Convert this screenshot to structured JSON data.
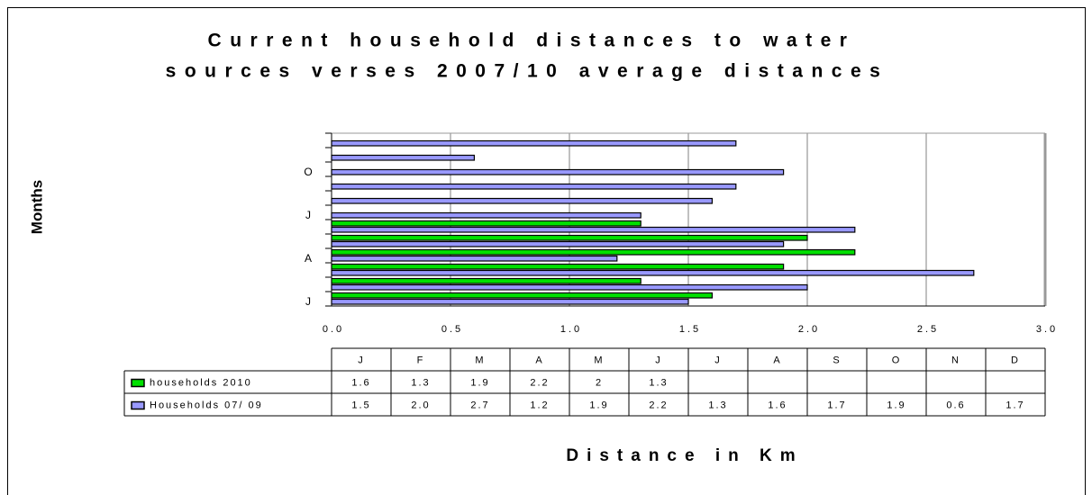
{
  "chart_data": {
    "type": "barh",
    "title": [
      "Current household distances to water",
      "sources verses 2007/10 average distances"
    ],
    "ylabel": "Months",
    "xlabel": "Distance in Km",
    "categories": [
      "J",
      "F",
      "M",
      "A",
      "M",
      "J",
      "J",
      "A",
      "S",
      "O",
      "N",
      "D"
    ],
    "series": [
      {
        "name": "households 2010",
        "color": "#00e000",
        "values": [
          1.6,
          1.3,
          1.9,
          2.2,
          2,
          1.3,
          null,
          null,
          null,
          null,
          null,
          null
        ]
      },
      {
        "name": "Households 07/ 09",
        "color": "#9999ff",
        "values": [
          1.5,
          2.0,
          2.7,
          1.2,
          1.9,
          2.2,
          1.3,
          1.6,
          1.7,
          1.9,
          0.6,
          1.7
        ],
        "value_labels": [
          "1.5",
          "2.0",
          "2.7",
          "1.2",
          "1.9",
          "2.2",
          "1.3",
          "1.6",
          "1.7",
          "1.9",
          "0.6",
          "1.7"
        ]
      }
    ],
    "xlim": [
      0,
      3
    ],
    "xticks": [
      {
        "value": 0,
        "label": "0.0"
      },
      {
        "value": 0.5,
        "label": "0.5"
      },
      {
        "value": 1,
        "label": "1.0"
      },
      {
        "value": 1.5,
        "label": "1.5"
      },
      {
        "value": 2,
        "label": "2.0"
      },
      {
        "value": 2.5,
        "label": "2.5"
      },
      {
        "value": 3,
        "label": "3.0"
      }
    ],
    "grid": true
  }
}
